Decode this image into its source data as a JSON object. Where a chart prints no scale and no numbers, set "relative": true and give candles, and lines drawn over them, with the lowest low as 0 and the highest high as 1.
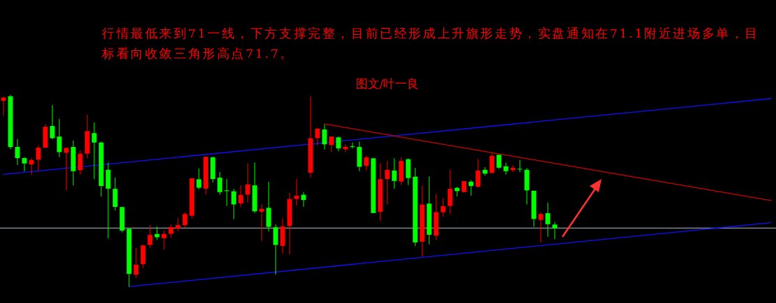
{
  "chart_data": {
    "type": "candlestick",
    "relative": true,
    "annotations": [
      "行情最低来到71一线，下方支撑完整，目前已经形成上升旗形走势，实盘通知在71.1附近进场多单，目标看向收敛三角形高点71.7。",
      "图文/叶一良"
    ],
    "categories": [
      null,
      null,
      null,
      null,
      null,
      null,
      null,
      null,
      null,
      null,
      null,
      null,
      null,
      null,
      null,
      null,
      null,
      null,
      null,
      null,
      null,
      null,
      null,
      null,
      null,
      null,
      null,
      null,
      null,
      null,
      null,
      null,
      null,
      null,
      null,
      null,
      null,
      null,
      null,
      null,
      null,
      null,
      null,
      null,
      null,
      null,
      null,
      null,
      null,
      null,
      null,
      null,
      null,
      null,
      null,
      null,
      null,
      null,
      null,
      null,
      null,
      null,
      null,
      null,
      null,
      null,
      null,
      null,
      null,
      null,
      null,
      null,
      null,
      null,
      null,
      null,
      null,
      null,
      null,
      null,
      null,
      null,
      null,
      null,
      null,
      null,
      null,
      null,
      null,
      null,
      null,
      null,
      null,
      null,
      null,
      null,
      null,
      null,
      null,
      null,
      null,
      null,
      null,
      null,
      null,
      null,
      null,
      null,
      null,
      null,
      null
    ],
    "ohlc": [
      [
        0.968,
        0.992,
        0.892,
        0.985
      ],
      [
        0.992,
        1,
        0.716,
        0.728
      ],
      [
        0.728,
        0.769,
        0.634,
        0.67
      ],
      [
        0.67,
        0.675,
        0.601,
        0.642
      ],
      [
        0.637,
        0.669,
        0.584,
        0.66
      ],
      [
        0.662,
        0.736,
        0.606,
        0.724
      ],
      [
        0.724,
        0.847,
        0.724,
        0.833
      ],
      [
        0.837,
        0.946,
        0.768,
        0.774
      ],
      [
        0.782,
        0.873,
        0.675,
        0.701
      ],
      [
        0.698,
        0.723,
        0.502,
        0.723
      ],
      [
        0.728,
        0.761,
        0.528,
        0.602
      ],
      [
        0.607,
        0.71,
        0.584,
        0.692
      ],
      [
        0.693,
        0.896,
        0.67,
        0.81
      ],
      [
        0.8,
        0.855,
        0.561,
        0.751
      ],
      [
        0.751,
        0.756,
        0.47,
        0.525
      ],
      [
        0.609,
        0.647,
        0.253,
        0.511
      ],
      [
        0.51,
        0.569,
        0.398,
        0.416
      ],
      [
        0.415,
        0.415,
        0.283,
        0.293
      ],
      [
        0.302,
        0.302,
        0,
        0.067
      ],
      [
        0.063,
        0.202,
        0.045,
        0.115
      ],
      [
        0.118,
        0.22,
        0.099,
        0.215
      ],
      [
        0.218,
        0.321,
        0.203,
        0.27
      ],
      [
        0.275,
        0.314,
        0.244,
        0.258
      ],
      [
        0.253,
        0.293,
        0.194,
        0.275
      ],
      [
        0.276,
        0.324,
        0.256,
        0.311
      ],
      [
        0.304,
        0.357,
        0.289,
        0.321
      ],
      [
        0.321,
        0.388,
        0.307,
        0.379
      ],
      [
        0.37,
        0.565,
        0.357,
        0.565
      ],
      [
        0.56,
        0.616,
        0.507,
        0.516
      ],
      [
        0.511,
        0.677,
        0.48,
        0.677
      ],
      [
        0.674,
        0.678,
        0.543,
        0.561
      ],
      [
        0.568,
        0.597,
        0.479,
        0.493
      ],
      [
        0.502,
        0.561,
        0.421,
        0.498
      ],
      [
        0.497,
        0.51,
        0.352,
        0.429
      ],
      [
        0.434,
        0.528,
        0.417,
        0.478
      ],
      [
        0.48,
        0.642,
        0.439,
        0.533
      ],
      [
        0.528,
        0.647,
        0.384,
        0.393
      ],
      [
        0.39,
        0.429,
        0.239,
        0.406
      ],
      [
        0.411,
        0.547,
        0.289,
        0.312
      ],
      [
        0.31,
        0.325,
        0.063,
        0.218
      ],
      [
        0.213,
        0.357,
        0.172,
        0.314
      ],
      [
        0.316,
        0.489,
        0.168,
        0.457
      ],
      [
        0.457,
        0.561,
        0.424,
        0.474
      ],
      [
        0.479,
        0.493,
        0.417,
        0.452
      ],
      [
        0.594,
        0.992,
        0.569,
        0.773
      ],
      [
        0.774,
        0.828,
        0.736,
        0.823
      ],
      [
        0.819,
        0.845,
        0.715,
        0.742
      ],
      [
        0.738,
        0.782,
        0.701,
        0.782
      ],
      [
        0.778,
        0.782,
        0.706,
        0.721
      ],
      [
        0.716,
        0.741,
        0.701,
        0.728
      ],
      [
        0.732,
        0.751,
        0.72,
        0.729
      ],
      [
        0.728,
        0.756,
        0.602,
        0.625
      ],
      [
        0.63,
        0.683,
        0.607,
        0.674
      ],
      [
        0.669,
        0.669,
        0.384,
        0.384
      ],
      [
        0.39,
        0.642,
        0.343,
        0.56
      ],
      [
        0.561,
        0.655,
        0.429,
        0.609
      ],
      [
        0.605,
        0.669,
        0.511,
        0.551
      ],
      [
        0.548,
        0.674,
        0.53,
        0.655
      ],
      [
        0.664,
        0.669,
        0.53,
        0.566
      ],
      [
        0.573,
        0.619,
        0.212,
        0.231
      ],
      [
        0.235,
        0.525,
        0.156,
        0.428
      ],
      [
        0.433,
        0.575,
        0.221,
        0.271
      ],
      [
        0.266,
        0.482,
        0.243,
        0.388
      ],
      [
        0.388,
        0.461,
        0.365,
        0.42
      ],
      [
        0.421,
        0.609,
        0.38,
        0.51
      ],
      [
        0.515,
        0.521,
        0.47,
        0.498
      ],
      [
        0.493,
        0.55,
        0.493,
        0.55
      ],
      [
        0.547,
        0.556,
        0.475,
        0.525
      ],
      [
        0.521,
        0.665,
        0.515,
        0.605
      ],
      [
        0.609,
        0.623,
        0.579,
        0.589
      ],
      [
        0.593,
        0.693,
        0.589,
        0.682
      ],
      [
        0.687,
        0.687,
        0.614,
        0.62
      ],
      [
        0.627,
        0.646,
        0.584,
        0.602
      ],
      [
        0.607,
        0.633,
        0.597,
        0.619
      ],
      [
        0.614,
        0.66,
        0.597,
        0.611
      ],
      [
        0.609,
        0.618,
        0.429,
        0.502
      ],
      [
        0.5,
        0.5,
        0.312,
        0.353
      ],
      [
        0.348,
        0.388,
        0.23,
        0.379
      ],
      [
        0.383,
        0.438,
        0.261,
        0.326
      ],
      [
        0.324,
        0.337,
        0.248,
        0.305
      ],
      null,
      null,
      null,
      null,
      null,
      null,
      null,
      null,
      null,
      null,
      null,
      null,
      null,
      null,
      null,
      null,
      null,
      null,
      null,
      null,
      null,
      null,
      null,
      null,
      null,
      null,
      null,
      null,
      null,
      null,
      null
    ],
    "colors": [
      "#ff0000",
      "#00ff00",
      "#00ff00",
      "#00ff00",
      "#ff0000",
      "#ff0000",
      "#ff0000",
      "#00ff00",
      "#00ff00",
      "#ff0000",
      "#00ff00",
      "#ff0000",
      "#ff0000",
      "#00ff00",
      "#00ff00",
      "#00ff00",
      "#00ff00",
      "#00ff00",
      "#00ff00",
      "#ff0000",
      "#ff0000",
      "#ff0000",
      "#00ff00",
      "#ff0000",
      "#ff0000",
      "#ff0000",
      "#ff0000",
      "#ff0000",
      "#00ff00",
      "#ff0000",
      "#00ff00",
      "#00ff00",
      "#00ff00",
      "#00ff00",
      "#ff0000",
      "#ff0000",
      "#00ff00",
      "#ff0000",
      "#00ff00",
      "#00ff00",
      "#ff0000",
      "#ff0000",
      "#ff0000",
      "#00ff00",
      "#ff0000",
      "#ff0000",
      "#00ff00",
      "#ff0000",
      "#00ff00",
      "#ff0000",
      "#00ff00",
      "#00ff00",
      "#ff0000",
      "#00ff00",
      "#ff0000",
      "#ff0000",
      "#00ff00",
      "#ff0000",
      "#00ff00",
      "#00ff00",
      "#ff0000",
      "#00ff00",
      "#ff0000",
      "#ff0000",
      "#ff0000",
      "#00ff00",
      "#ff0000",
      "#00ff00",
      "#ff0000",
      "#00ff00",
      "#ff0000",
      "#00ff00",
      "#00ff00",
      "#ff0000",
      "#00ff00",
      "#00ff00",
      "#00ff00",
      "#ff0000",
      "#00ff00",
      "#00ff00",
      null,
      null,
      null,
      null,
      null,
      null,
      null,
      null,
      null,
      null,
      null,
      null,
      null,
      null,
      null,
      null,
      null,
      null,
      null,
      null,
      null,
      null,
      null,
      null,
      null,
      null,
      null,
      null,
      null,
      null,
      null
    ],
    "series": [
      {
        "type": "line",
        "color": "#1010ff",
        "values": [
          0.585,
          null,
          null,
          null,
          null,
          null,
          null,
          null,
          null,
          null,
          null,
          null,
          null,
          null,
          null,
          null,
          null,
          null,
          null,
          null,
          null,
          null,
          null,
          null,
          null,
          null,
          null,
          null,
          null,
          null,
          null,
          null,
          null,
          null,
          null,
          null,
          null,
          null,
          null,
          null,
          null,
          null,
          null,
          null,
          null,
          null,
          null,
          null,
          null,
          null,
          null,
          null,
          null,
          null,
          null,
          null,
          null,
          null,
          null,
          null,
          null,
          null,
          null,
          null,
          null,
          null,
          null,
          null,
          null,
          null,
          null,
          null,
          null,
          null,
          null,
          null,
          null,
          null,
          null,
          null,
          null,
          null,
          null,
          null,
          null,
          null,
          null,
          null,
          null,
          null,
          null,
          null,
          null,
          null,
          null,
          null,
          null,
          null,
          null,
          null,
          null,
          null,
          null,
          null,
          null,
          null,
          null,
          null,
          null,
          null,
          0.98
        ]
      },
      {
        "type": "line",
        "color": "#1010ff",
        "values": [
          null,
          null,
          null,
          null,
          null,
          null,
          null,
          null,
          null,
          null,
          null,
          null,
          null,
          null,
          null,
          null,
          null,
          null,
          0.001,
          null,
          null,
          null,
          null,
          null,
          null,
          null,
          null,
          null,
          null,
          null,
          null,
          null,
          null,
          null,
          null,
          null,
          null,
          null,
          null,
          null,
          null,
          null,
          null,
          null,
          null,
          null,
          null,
          null,
          null,
          null,
          null,
          null,
          null,
          null,
          null,
          null,
          null,
          null,
          null,
          null,
          null,
          null,
          null,
          null,
          null,
          null,
          null,
          null,
          null,
          null,
          null,
          null,
          null,
          null,
          null,
          null,
          null,
          null,
          null,
          null,
          null,
          null,
          null,
          null,
          null,
          null,
          null,
          null,
          null,
          null,
          null,
          null,
          null,
          null,
          null,
          null,
          null,
          null,
          null,
          null,
          null,
          null,
          null,
          null,
          null,
          null,
          null,
          null,
          null,
          null,
          0.334
        ]
      },
      {
        "type": "line",
        "color": "#d00000",
        "values": [
          null,
          null,
          null,
          null,
          null,
          null,
          null,
          null,
          null,
          null,
          null,
          null,
          null,
          null,
          null,
          null,
          null,
          null,
          null,
          null,
          null,
          null,
          null,
          null,
          null,
          null,
          null,
          null,
          null,
          null,
          null,
          null,
          null,
          null,
          null,
          null,
          null,
          null,
          null,
          null,
          null,
          null,
          null,
          null,
          null,
          null,
          0.848,
          null,
          null,
          null,
          null,
          null,
          null,
          null,
          null,
          null,
          null,
          null,
          null,
          null,
          null,
          null,
          null,
          null,
          null,
          null,
          null,
          null,
          null,
          null,
          null,
          null,
          null,
          null,
          null,
          null,
          null,
          null,
          null,
          null,
          null,
          null,
          null,
          null,
          null,
          null,
          null,
          null,
          null,
          null,
          null,
          null,
          null,
          null,
          null,
          null,
          null,
          null,
          null,
          null,
          null,
          null,
          null,
          null,
          null,
          null,
          null,
          null,
          null,
          null,
          0.449
        ]
      }
    ],
    "ref_lines": [
      {
        "axis": "y",
        "value": 0.305,
        "color": "#7f8790"
      }
    ]
  }
}
